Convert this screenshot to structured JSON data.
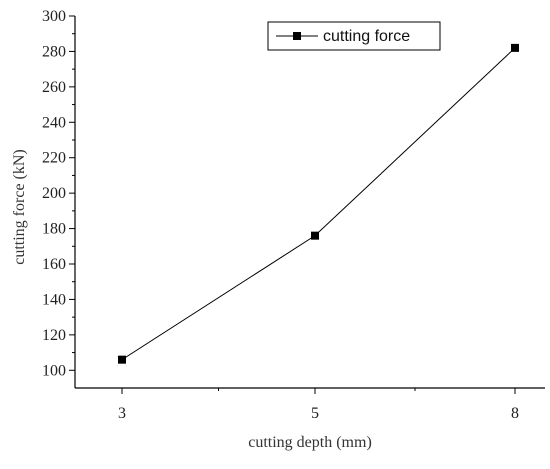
{
  "chart_data": {
    "type": "line",
    "x_categories": [
      "3",
      "5",
      "8"
    ],
    "series": [
      {
        "name": "cutting force",
        "points": [
          {
            "x": "3",
            "y": 106
          },
          {
            "x": "5",
            "y": 176
          },
          {
            "x": "8",
            "y": 282
          }
        ],
        "marker": "square"
      }
    ],
    "xlabel": "cutting depth (mm)",
    "ylabel": "cutting force (kN)",
    "ylim": [
      90,
      300
    ],
    "yticks": [
      100,
      120,
      140,
      160,
      180,
      200,
      220,
      240,
      260,
      280,
      300
    ],
    "grid": false,
    "legend_position": "top-right"
  },
  "colors": {
    "line": "#000000",
    "axis": "#000000",
    "background": "#ffffff"
  }
}
